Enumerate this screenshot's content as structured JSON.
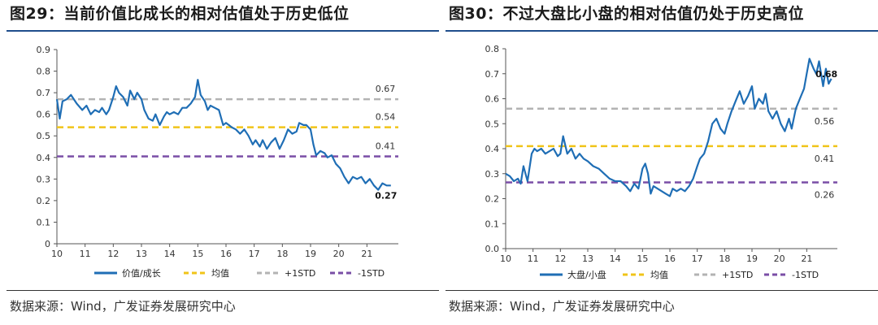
{
  "chart_data": [
    {
      "type": "line",
      "title": "图29：当前价值比成长的相对估值处于历史低位",
      "source": "数据来源：Wind，广发证券发展研究中心",
      "ylim": [
        0,
        0.9
      ],
      "yticks": [
        "0",
        "0.1",
        "0.2",
        "0.3",
        "0.4",
        "0.5",
        "0.6",
        "0.7",
        "0.8",
        "0.9"
      ],
      "xlim": [
        10,
        22
      ],
      "xticks": [
        "10",
        "11",
        "12",
        "13",
        "14",
        "15",
        "16",
        "17",
        "18",
        "19",
        "20",
        "21"
      ],
      "series": [
        {
          "name": "价值/成长",
          "color": "#1f6eb5",
          "x": [
            10.0,
            10.1,
            10.2,
            10.35,
            10.5,
            10.7,
            10.9,
            11.05,
            11.2,
            11.35,
            11.5,
            11.6,
            11.75,
            11.85,
            12.0,
            12.1,
            12.2,
            12.35,
            12.5,
            12.6,
            12.75,
            12.85,
            13.0,
            13.1,
            13.25,
            13.4,
            13.5,
            13.65,
            13.8,
            13.9,
            14.0,
            14.15,
            14.3,
            14.45,
            14.6,
            14.75,
            14.9,
            15.0,
            15.1,
            15.25,
            15.35,
            15.45,
            15.6,
            15.75,
            15.9,
            16.0,
            16.1,
            16.2,
            16.35,
            16.5,
            16.65,
            16.8,
            16.95,
            17.05,
            17.2,
            17.3,
            17.45,
            17.6,
            17.75,
            17.9,
            18.05,
            18.2,
            18.35,
            18.5,
            18.6,
            18.75,
            18.85,
            19.0,
            19.1,
            19.2,
            19.35,
            19.5,
            19.6,
            19.75,
            19.9,
            20.05,
            20.2,
            20.35,
            20.5,
            20.65,
            20.8,
            20.95,
            21.1,
            21.25,
            21.4,
            21.55,
            21.7,
            21.85
          ],
          "y": [
            0.67,
            0.58,
            0.66,
            0.67,
            0.69,
            0.65,
            0.62,
            0.64,
            0.6,
            0.62,
            0.61,
            0.63,
            0.6,
            0.62,
            0.68,
            0.73,
            0.7,
            0.68,
            0.64,
            0.71,
            0.67,
            0.7,
            0.67,
            0.62,
            0.58,
            0.57,
            0.6,
            0.55,
            0.59,
            0.61,
            0.6,
            0.61,
            0.6,
            0.63,
            0.63,
            0.65,
            0.68,
            0.76,
            0.69,
            0.66,
            0.62,
            0.64,
            0.63,
            0.62,
            0.55,
            0.56,
            0.55,
            0.54,
            0.53,
            0.51,
            0.53,
            0.5,
            0.46,
            0.48,
            0.45,
            0.48,
            0.44,
            0.47,
            0.49,
            0.44,
            0.48,
            0.53,
            0.51,
            0.52,
            0.56,
            0.55,
            0.55,
            0.53,
            0.46,
            0.41,
            0.43,
            0.42,
            0.4,
            0.41,
            0.37,
            0.35,
            0.31,
            0.28,
            0.31,
            0.3,
            0.31,
            0.28,
            0.3,
            0.27,
            0.25,
            0.28,
            0.27,
            0.27
          ]
        },
        {
          "name": "均值",
          "value": 0.54,
          "color": "#f0c419",
          "label": "0.54"
        },
        {
          "name": "+1STD",
          "value": 0.67,
          "color": "#b3b3b3",
          "label": "0.67"
        },
        {
          "name": "-1STD",
          "value": 0.405,
          "color": "#7a4ea6",
          "label": "0.41"
        }
      ],
      "last_label": "0.27"
    },
    {
      "type": "line",
      "title": "图30：不过大盘比小盘的相对估值仍处于历史高位",
      "source": "数据来源：Wind，广发证券发展研究中心",
      "ylim": [
        0,
        0.8
      ],
      "yticks": [
        "0.0",
        "0.1",
        "0.2",
        "0.3",
        "0.4",
        "0.5",
        "0.6",
        "0.7",
        "0.8"
      ],
      "xlim": [
        10,
        22
      ],
      "xticks": [
        "10",
        "11",
        "12",
        "13",
        "14",
        "15",
        "16",
        "17",
        "18",
        "19",
        "20",
        "21"
      ],
      "series": [
        {
          "name": "大盘/小盘",
          "color": "#1f6eb5",
          "x": [
            10.0,
            10.15,
            10.3,
            10.45,
            10.55,
            10.65,
            10.8,
            10.95,
            11.05,
            11.15,
            11.3,
            11.45,
            11.6,
            11.75,
            11.9,
            12.0,
            12.1,
            12.25,
            12.4,
            12.55,
            12.7,
            12.85,
            13.0,
            13.2,
            13.4,
            13.6,
            13.8,
            14.0,
            14.2,
            14.4,
            14.55,
            14.7,
            14.85,
            15.0,
            15.1,
            15.2,
            15.3,
            15.4,
            15.55,
            15.7,
            15.85,
            16.0,
            16.1,
            16.25,
            16.4,
            16.55,
            16.7,
            16.85,
            17.0,
            17.1,
            17.25,
            17.4,
            17.55,
            17.7,
            17.85,
            18.0,
            18.1,
            18.25,
            18.4,
            18.55,
            18.7,
            18.85,
            19.0,
            19.1,
            19.25,
            19.4,
            19.5,
            19.6,
            19.75,
            19.9,
            20.05,
            20.2,
            20.35,
            20.45,
            20.6,
            20.75,
            20.9,
            21.0,
            21.1,
            21.25,
            21.35,
            21.45,
            21.6,
            21.7,
            21.8,
            21.9
          ],
          "y": [
            0.3,
            0.29,
            0.27,
            0.28,
            0.26,
            0.33,
            0.27,
            0.38,
            0.4,
            0.39,
            0.4,
            0.38,
            0.39,
            0.4,
            0.37,
            0.38,
            0.45,
            0.38,
            0.4,
            0.36,
            0.38,
            0.36,
            0.35,
            0.33,
            0.32,
            0.3,
            0.28,
            0.27,
            0.27,
            0.25,
            0.23,
            0.26,
            0.24,
            0.32,
            0.34,
            0.3,
            0.22,
            0.25,
            0.24,
            0.23,
            0.22,
            0.21,
            0.24,
            0.23,
            0.24,
            0.23,
            0.25,
            0.28,
            0.33,
            0.36,
            0.38,
            0.43,
            0.5,
            0.52,
            0.48,
            0.46,
            0.5,
            0.55,
            0.59,
            0.63,
            0.58,
            0.61,
            0.65,
            0.56,
            0.6,
            0.58,
            0.62,
            0.55,
            0.52,
            0.55,
            0.5,
            0.47,
            0.52,
            0.48,
            0.56,
            0.6,
            0.64,
            0.7,
            0.76,
            0.72,
            0.7,
            0.75,
            0.65,
            0.72,
            0.66,
            0.68
          ]
        },
        {
          "name": "均值",
          "value": 0.41,
          "color": "#f0c419",
          "label": "0.41"
        },
        {
          "name": "+1STD",
          "value": 0.56,
          "color": "#b3b3b3",
          "label": "0.56"
        },
        {
          "name": "-1STD",
          "value": 0.265,
          "color": "#7a4ea6",
          "label": "0.26"
        }
      ],
      "last_label": "0.68"
    }
  ]
}
